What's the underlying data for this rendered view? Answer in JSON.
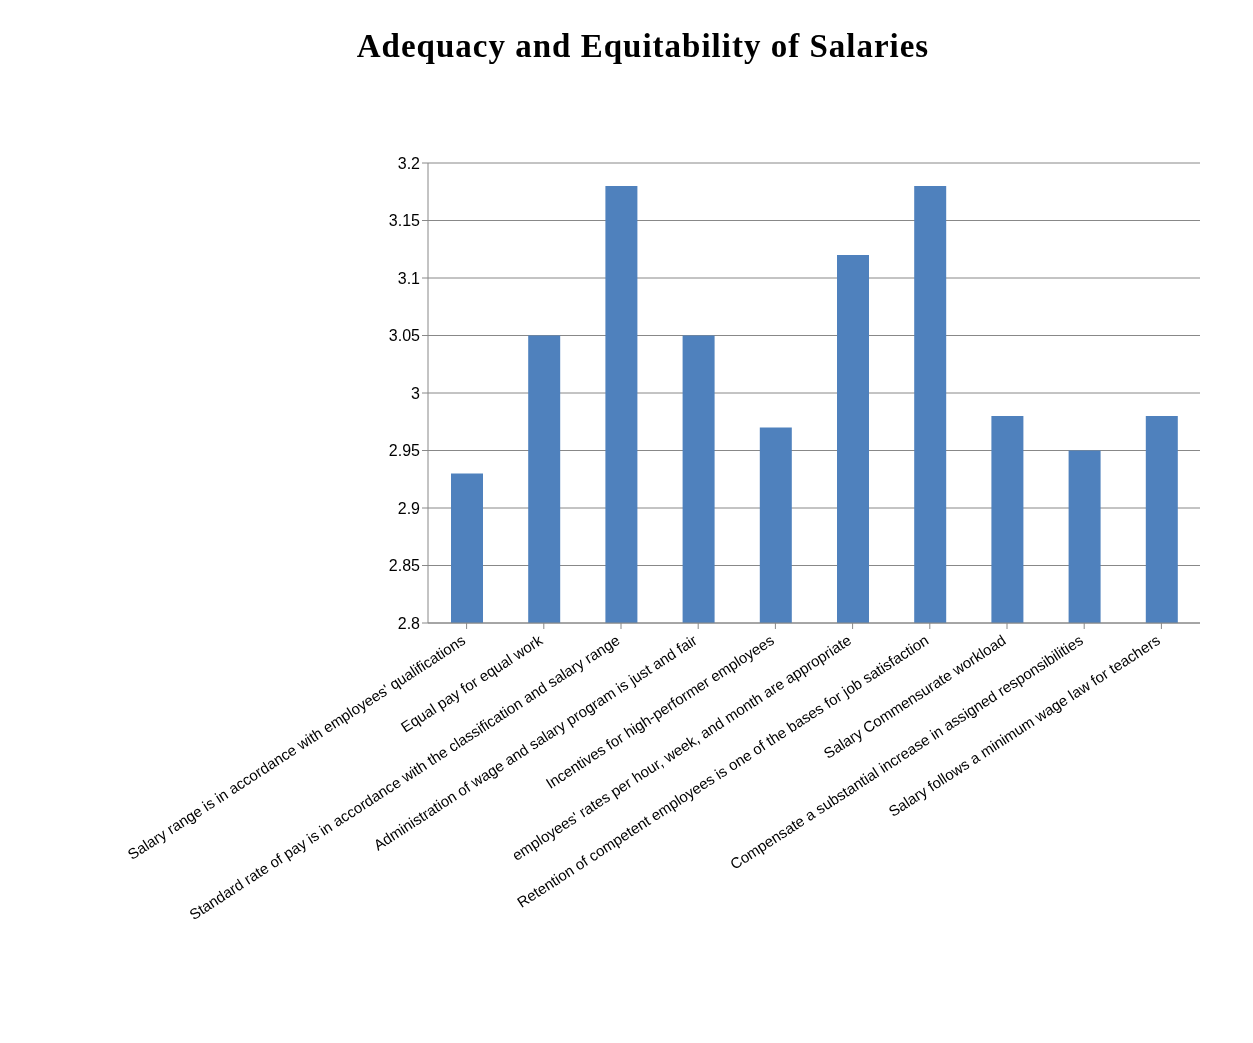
{
  "chart_data": {
    "type": "bar",
    "title": "Adequacy and Equitability of Salaries",
    "categories": [
      "Salary range is in accordance with employees' qualifications",
      "Equal pay for equal work",
      "Standard rate of pay is in accordance with the classification and salary range",
      "Administration of wage and salary program is just and fair",
      "Incentives for high-performer employees",
      "employees' rates per hour, week, and month are appropriate",
      "Retention of competent employees is one of the bases for job satisfaction",
      "Salary Commensurate workload",
      "Compensate a substantial increase in assigned responsibilities",
      "Salary follows a minimum wage law for teachers"
    ],
    "values": [
      2.93,
      3.05,
      3.18,
      3.05,
      2.97,
      3.12,
      3.18,
      2.98,
      2.95,
      2.98
    ],
    "color": "#4f81bd",
    "ylim": [
      2.8,
      3.2
    ],
    "yticks": [
      2.8,
      2.85,
      2.9,
      2.95,
      3,
      3.05,
      3.1,
      3.15,
      3.2
    ],
    "grid": "y",
    "legend": false
  }
}
